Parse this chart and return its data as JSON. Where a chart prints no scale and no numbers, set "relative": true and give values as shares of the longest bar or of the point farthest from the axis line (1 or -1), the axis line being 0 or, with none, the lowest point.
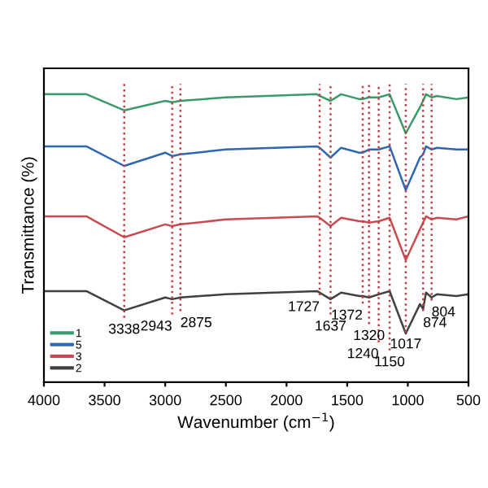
{
  "chart_data": {
    "type": "line",
    "relative": true,
    "xlabel": "Wavenumber (cm$^{−1}$)",
    "ylabel": "Transmittance (%)",
    "x": [
      4000,
      3650,
      3338,
      3000,
      2943,
      2875,
      2500,
      1750,
      1727,
      1637,
      1550,
      1400,
      1372,
      1320,
      1240,
      1150,
      1017,
      900,
      874,
      850,
      804,
      760,
      600,
      500
    ],
    "xlim": [
      4000,
      500
    ],
    "xticks": [
      4000,
      3500,
      3000,
      2500,
      2000,
      1500,
      1000,
      500
    ],
    "grid": false,
    "legend": "bottom left",
    "marker": "none",
    "line_style": "solid",
    "series": [
      {
        "name": "1",
        "color": "#3a9a6a",
        "values": [
          1.0,
          1.0,
          0.944,
          0.977,
          0.972,
          0.977,
          0.989,
          1.0,
          0.994,
          0.977,
          1.0,
          0.983,
          0.983,
          0.989,
          0.989,
          1.0,
          0.864,
          0.955,
          0.977,
          1.0,
          0.989,
          0.994,
          0.983,
          0.989
        ]
      },
      {
        "name": "5",
        "color": "#2f67b0",
        "values": [
          0.819,
          0.819,
          0.751,
          0.797,
          0.785,
          0.791,
          0.808,
          0.819,
          0.814,
          0.78,
          0.814,
          0.797,
          0.797,
          0.808,
          0.808,
          0.819,
          0.667,
          0.78,
          0.791,
          0.819,
          0.808,
          0.814,
          0.808,
          0.808
        ]
      },
      {
        "name": "3",
        "color": "#c94a50",
        "values": [
          0.576,
          0.576,
          0.503,
          0.548,
          0.542,
          0.548,
          0.565,
          0.576,
          0.571,
          0.542,
          0.571,
          0.559,
          0.559,
          0.554,
          0.559,
          0.571,
          0.424,
          0.531,
          0.554,
          0.576,
          0.565,
          0.571,
          0.565,
          0.576
        ]
      },
      {
        "name": "2",
        "color": "#404040",
        "values": [
          0.316,
          0.316,
          0.249,
          0.294,
          0.288,
          0.294,
          0.305,
          0.316,
          0.311,
          0.288,
          0.311,
          0.299,
          0.299,
          0.294,
          0.305,
          0.316,
          0.169,
          0.271,
          0.254,
          0.311,
          0.294,
          0.305,
          0.299,
          0.305
        ]
      }
    ],
    "ref_lines": [
      {
        "axis": "x",
        "value": 3338,
        "label": "3338",
        "color": "#c0404a",
        "line_style": "dotted"
      },
      {
        "axis": "x",
        "value": 2943,
        "label": "2943",
        "color": "#c0404a",
        "line_style": "dotted"
      },
      {
        "axis": "x",
        "value": 2875,
        "label": "2875",
        "color": "#c0404a",
        "line_style": "dotted"
      },
      {
        "axis": "x",
        "value": 1727,
        "label": "1727",
        "color": "#c0404a",
        "line_style": "dotted"
      },
      {
        "axis": "x",
        "value": 1637,
        "label": "1637",
        "color": "#c0404a",
        "line_style": "dotted"
      },
      {
        "axis": "x",
        "value": 1372,
        "label": "1372",
        "color": "#c0404a",
        "line_style": "dotted"
      },
      {
        "axis": "x",
        "value": 1320,
        "label": "1320",
        "color": "#c0404a",
        "line_style": "dotted"
      },
      {
        "axis": "x",
        "value": 1240,
        "label": "1240",
        "color": "#c0404a",
        "line_style": "dotted"
      },
      {
        "axis": "x",
        "value": 1150,
        "label": "1150",
        "color": "#c0404a",
        "line_style": "dotted"
      },
      {
        "axis": "x",
        "value": 1017,
        "label": "1017",
        "color": "#c0404a",
        "line_style": "dotted"
      },
      {
        "axis": "x",
        "value": 874,
        "label": "874",
        "color": "#c0404a",
        "line_style": "dotted"
      },
      {
        "axis": "x",
        "value": 804,
        "label": "804",
        "color": "#c0404a",
        "line_style": "dotted"
      }
    ]
  }
}
